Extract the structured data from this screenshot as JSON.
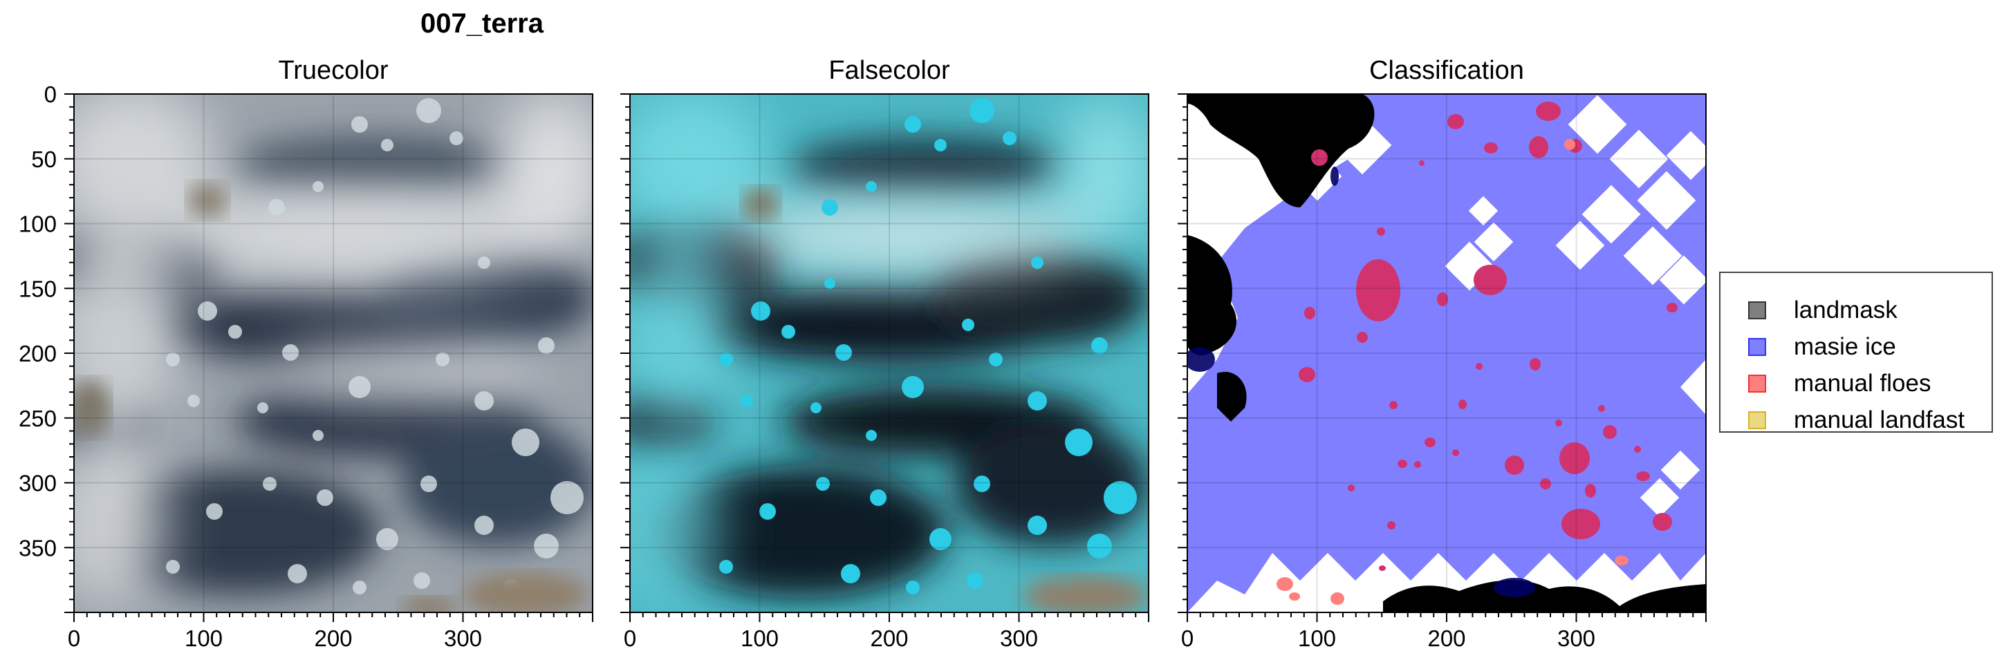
{
  "figure": {
    "suptitle": "007_terra",
    "panels": [
      {
        "id": "truecolor",
        "title": "Truecolor"
      },
      {
        "id": "falsecolor",
        "title": "Falsecolor"
      },
      {
        "id": "classification",
        "title": "Classification"
      }
    ],
    "x_ticks": [
      "0",
      "100",
      "200",
      "300"
    ],
    "y_ticks": [
      "0",
      "50",
      "100",
      "150",
      "200",
      "250",
      "300",
      "350"
    ],
    "axis_range": {
      "x": [
        0,
        400
      ],
      "y": [
        0,
        400
      ],
      "y_inverted": true
    },
    "grid": true
  },
  "legend": {
    "placement": "right",
    "items": [
      {
        "label": "landmask",
        "color": "#7f7f7f"
      },
      {
        "label": "masie ice",
        "color": "#7f7fff"
      },
      {
        "label": "manual floes",
        "color": "#ff7f7f"
      },
      {
        "label": "manual landfast",
        "color": "#ecd87f"
      }
    ]
  },
  "colors": {
    "ocean_dark": "#1f2a3a",
    "cloud": "#cdd1d4",
    "false_water": "#0d1620",
    "false_ice": "#2ccbe6",
    "masie_ice": "#7f7fff",
    "land": "#000000",
    "floe": "#d1336e"
  }
}
